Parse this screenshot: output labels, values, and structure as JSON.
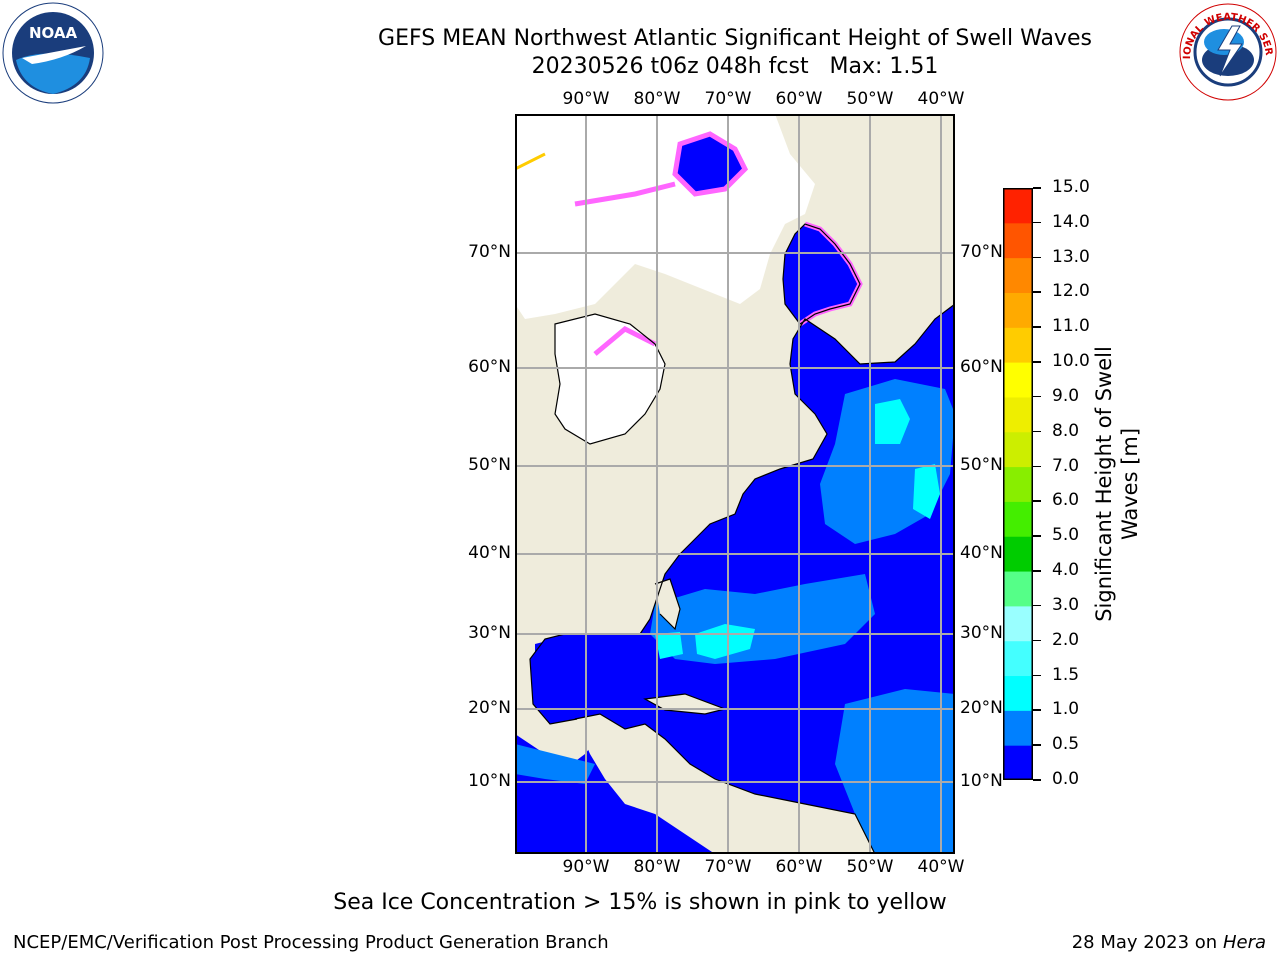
{
  "title": {
    "line1": "GEFS MEAN Northwest Atlantic Significant Height of Swell Waves",
    "line2": "20230526 t06z 048h fcst   Max: 1.51"
  },
  "logos": {
    "left": "noaa-logo",
    "right": "nws-logo",
    "left_text": "NOAA",
    "right_text": "NATIONAL WEATHER SERVICE"
  },
  "map": {
    "lon_labels": [
      "90°W",
      "80°W",
      "70°W",
      "60°W",
      "50°W",
      "40°W"
    ],
    "lat_labels": [
      "70°N",
      "60°N",
      "50°N",
      "40°N",
      "30°N",
      "20°N",
      "10°N"
    ],
    "land_color": "#efecdc",
    "ocean_color": "#0000ff",
    "ice_colors": [
      "#ff66ff",
      "#ffcc00"
    ],
    "grid": true
  },
  "colorbar": {
    "label_line1": "Significant Height of Swell",
    "label_line2": "Waves [m]",
    "ticks": [
      "15.0",
      "14.0",
      "13.0",
      "12.0",
      "11.0",
      "10.0",
      "9.0",
      "8.0",
      "7.0",
      "6.0",
      "5.0",
      "4.0",
      "3.0",
      "2.0",
      "1.5",
      "1.0",
      "0.5",
      "0.0"
    ],
    "colors": [
      "#0000ff",
      "#0080ff",
      "#00ffff",
      "#44ffff",
      "#99ffff",
      "#55ff88",
      "#00cc00",
      "#44ee00",
      "#88ee00",
      "#ccee00",
      "#eeee00",
      "#ffff00",
      "#ffcc00",
      "#ffaa00",
      "#ff8800",
      "#ff5500",
      "#ff2200",
      "#ff0000"
    ]
  },
  "footer": {
    "ice_note": "Sea Ice Concentration > 15% is shown in pink to yellow",
    "credit": "NCEP/EMC/Verification Post Processing Product Generation Branch",
    "date": "28 May 2023 on",
    "machine": "Hera"
  }
}
